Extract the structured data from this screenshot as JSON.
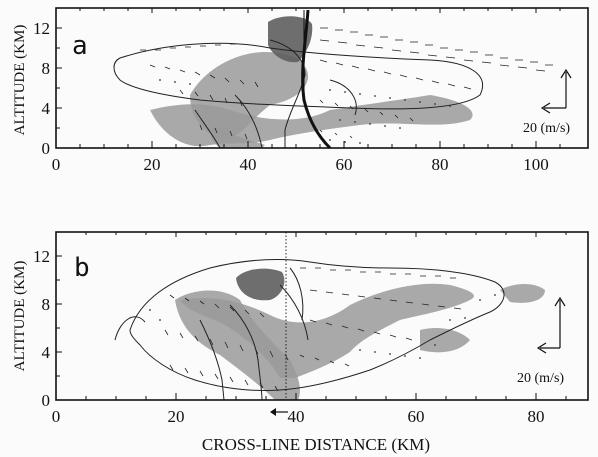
{
  "figure": {
    "panels": [
      {
        "letter": "a",
        "ylabel": "ALTITUDE (KM)",
        "x_ticks": [
          "0",
          "20",
          "40",
          "60",
          "80",
          "100"
        ],
        "y_ticks": [
          "0",
          "4",
          "8",
          "12"
        ],
        "scale_label": "20 (m/s)"
      },
      {
        "letter": "b",
        "ylabel": "ALTITUDE (KM)",
        "x_ticks": [
          "0",
          "20",
          "40",
          "60",
          "80"
        ],
        "y_ticks": [
          "0",
          "4",
          "8",
          "12"
        ],
        "scale_label": "20 (m/s)"
      }
    ],
    "xlabel": "CROSS-LINE DISTANCE (KM)"
  },
  "colors": {
    "shade_light": "#9a9a9a",
    "shade_dark": "#5e5e5e",
    "ink": "#111111"
  }
}
